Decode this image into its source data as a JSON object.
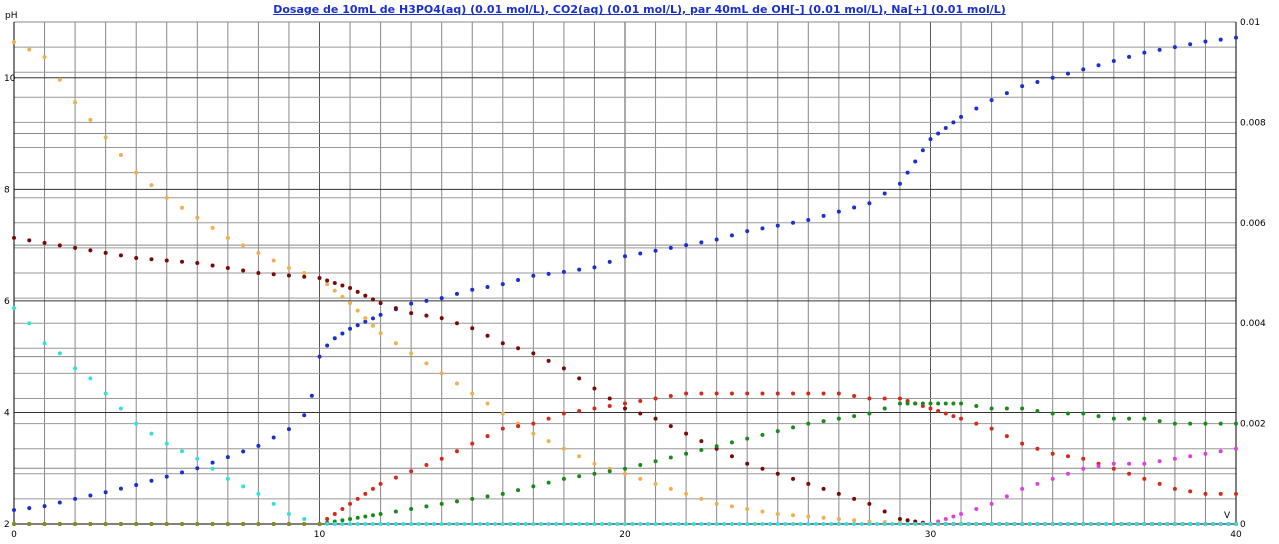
{
  "chart_data": {
    "type": "scatter",
    "title": "Dosage de 10mL de H3PO4(aq) (0.01 mol/L), CO2(aq) (0.01 mol/L),  par 40mL  de OH[-] (0.01 mol/L), Na[+] (0.01 mol/L)",
    "xlabel": "V",
    "ylabel_left": "pH",
    "ylabel_right": "",
    "xlim": [
      0,
      40
    ],
    "ylim_left": [
      2,
      11
    ],
    "ylim_right": [
      0,
      0.01
    ],
    "grid": true,
    "x_ticks": [
      "0",
      "10",
      "20",
      "30",
      "40"
    ],
    "y_left_ticks": [
      "2",
      "4",
      "6",
      "8",
      "10"
    ],
    "y_right_ticks": [
      "0",
      "0.002",
      "0.004",
      "0.006",
      "0.008",
      "0.01"
    ],
    "series": [
      {
        "axis": "left",
        "color": "#1a2fd0",
        "points": [
          [
            0,
            2.25
          ],
          [
            1,
            2.32
          ],
          [
            2,
            2.45
          ],
          [
            3,
            2.57
          ],
          [
            4,
            2.7
          ],
          [
            5,
            2.85
          ],
          [
            6,
            3.0
          ],
          [
            7,
            3.2
          ],
          [
            8,
            3.4
          ],
          [
            9,
            3.7
          ],
          [
            9.5,
            3.95
          ],
          [
            9.75,
            4.3
          ],
          [
            10,
            5.0
          ],
          [
            10.25,
            5.2
          ],
          [
            10.5,
            5.33
          ],
          [
            11,
            5.5
          ],
          [
            12,
            5.75
          ],
          [
            13,
            5.95
          ],
          [
            14,
            6.05
          ],
          [
            15,
            6.2
          ],
          [
            16,
            6.3
          ],
          [
            17,
            6.45
          ],
          [
            18,
            6.52
          ],
          [
            19,
            6.6
          ],
          [
            20,
            6.8
          ],
          [
            21,
            6.9
          ],
          [
            22,
            7.0
          ],
          [
            23,
            7.1
          ],
          [
            24,
            7.25
          ],
          [
            25,
            7.35
          ],
          [
            26,
            7.45
          ],
          [
            27,
            7.6
          ],
          [
            28,
            7.75
          ],
          [
            29,
            8.1
          ],
          [
            29.5,
            8.5
          ],
          [
            30,
            8.9
          ],
          [
            31,
            9.3
          ],
          [
            32,
            9.6
          ],
          [
            33,
            9.85
          ],
          [
            34,
            10.0
          ],
          [
            35,
            10.15
          ],
          [
            36,
            10.3
          ],
          [
            37,
            10.45
          ],
          [
            38,
            10.55
          ],
          [
            39,
            10.65
          ],
          [
            40,
            10.72
          ]
        ]
      },
      {
        "axis": "right",
        "color": "#f0b050",
        "points": [
          [
            0,
            0.0096
          ],
          [
            1,
            0.0093
          ],
          [
            2,
            0.0084
          ],
          [
            3,
            0.0077
          ],
          [
            4,
            0.007
          ],
          [
            5,
            0.0065
          ],
          [
            6,
            0.0061
          ],
          [
            7,
            0.0057
          ],
          [
            8,
            0.0054
          ],
          [
            9,
            0.0051
          ],
          [
            10,
            0.0049
          ],
          [
            11,
            0.0044
          ],
          [
            12,
            0.0038
          ],
          [
            13,
            0.0034
          ],
          [
            14,
            0.003
          ],
          [
            15,
            0.0026
          ],
          [
            16,
            0.0022
          ],
          [
            17,
            0.0018
          ],
          [
            18,
            0.0015
          ],
          [
            19,
            0.0012
          ],
          [
            20,
            0.001
          ],
          [
            21,
            0.0008
          ],
          [
            22,
            0.0006
          ],
          [
            23,
            0.0004
          ],
          [
            24,
            0.0003
          ],
          [
            25,
            0.0002
          ],
          [
            26,
            0.00015
          ],
          [
            27,
            0.0001
          ],
          [
            28,
            5e-05
          ],
          [
            30,
            0.0
          ],
          [
            40,
            0.0
          ]
        ]
      },
      {
        "axis": "right",
        "color": "#7a0a0a",
        "points": [
          [
            0,
            0.0057
          ],
          [
            2,
            0.0055
          ],
          [
            4,
            0.0053
          ],
          [
            6,
            0.0052
          ],
          [
            8,
            0.005
          ],
          [
            10,
            0.0049
          ],
          [
            11,
            0.0047
          ],
          [
            12,
            0.0044
          ],
          [
            13,
            0.0042
          ],
          [
            14,
            0.0041
          ],
          [
            15,
            0.0039
          ],
          [
            16,
            0.0036
          ],
          [
            17,
            0.0034
          ],
          [
            18,
            0.0031
          ],
          [
            19,
            0.0027
          ],
          [
            20,
            0.0023
          ],
          [
            21,
            0.0021
          ],
          [
            22,
            0.0018
          ],
          [
            23,
            0.0015
          ],
          [
            24,
            0.0012
          ],
          [
            25,
            0.001
          ],
          [
            26,
            0.0008
          ],
          [
            27,
            0.0006
          ],
          [
            28,
            0.0004
          ],
          [
            29,
            0.0001
          ],
          [
            30,
            0.0
          ],
          [
            40,
            0.0
          ]
        ]
      },
      {
        "axis": "right",
        "color": "#d42a1a",
        "points": [
          [
            0,
            0.0
          ],
          [
            9,
            0.0
          ],
          [
            10,
            0.0
          ],
          [
            11,
            0.0004
          ],
          [
            12,
            0.0008
          ],
          [
            14,
            0.0013
          ],
          [
            15,
            0.0016
          ],
          [
            16,
            0.0019
          ],
          [
            17,
            0.002
          ],
          [
            18,
            0.0022
          ],
          [
            19,
            0.0023
          ],
          [
            20,
            0.0024
          ],
          [
            21,
            0.0025
          ],
          [
            22,
            0.0026
          ],
          [
            23,
            0.0026
          ],
          [
            24,
            0.0026
          ],
          [
            25,
            0.0026
          ],
          [
            26,
            0.0026
          ],
          [
            27,
            0.0026
          ],
          [
            28,
            0.0025
          ],
          [
            29,
            0.0025
          ],
          [
            30,
            0.0023
          ],
          [
            31,
            0.0021
          ],
          [
            32,
            0.0019
          ],
          [
            33,
            0.0016
          ],
          [
            34,
            0.0014
          ],
          [
            35,
            0.0013
          ],
          [
            36,
            0.0011
          ],
          [
            37,
            0.0009
          ],
          [
            38,
            0.0007
          ],
          [
            39,
            0.0006
          ],
          [
            40,
            0.0006
          ]
        ]
      },
      {
        "axis": "right",
        "color": "#1a8a1a",
        "points": [
          [
            0,
            0.0
          ],
          [
            9,
            0.0
          ],
          [
            10,
            0.0
          ],
          [
            11,
            0.0001
          ],
          [
            12,
            0.0002
          ],
          [
            14,
            0.0004
          ],
          [
            16,
            0.0006
          ],
          [
            18,
            0.0009
          ],
          [
            20,
            0.0011
          ],
          [
            22,
            0.0014
          ],
          [
            24,
            0.0017
          ],
          [
            26,
            0.002
          ],
          [
            28,
            0.0022
          ],
          [
            29,
            0.0024
          ],
          [
            30,
            0.0024
          ],
          [
            31,
            0.0024
          ],
          [
            32,
            0.0023
          ],
          [
            33,
            0.0023
          ],
          [
            34,
            0.0022
          ],
          [
            35,
            0.0022
          ],
          [
            36,
            0.0021
          ],
          [
            37,
            0.0021
          ],
          [
            38,
            0.002
          ],
          [
            39,
            0.002
          ],
          [
            40,
            0.002
          ]
        ]
      },
      {
        "axis": "right",
        "color": "#e040e0",
        "points": [
          [
            30,
            0.0
          ],
          [
            31,
            0.0002
          ],
          [
            32,
            0.0004
          ],
          [
            33,
            0.0007
          ],
          [
            34,
            0.0009
          ],
          [
            35,
            0.0011
          ],
          [
            36,
            0.0012
          ],
          [
            37,
            0.0012
          ],
          [
            38,
            0.0013
          ],
          [
            39,
            0.0014
          ],
          [
            40,
            0.0015
          ]
        ]
      },
      {
        "axis": "right",
        "color": "#33e0e0",
        "points": [
          [
            0,
            0.0043
          ],
          [
            0.5,
            0.004
          ],
          [
            1,
            0.0036
          ],
          [
            1.5,
            0.0034
          ],
          [
            2,
            0.0031
          ],
          [
            2.5,
            0.0029
          ],
          [
            3,
            0.0026
          ],
          [
            3.5,
            0.0023
          ],
          [
            4,
            0.002
          ],
          [
            5,
            0.0016
          ],
          [
            6,
            0.0013
          ],
          [
            7,
            0.0009
          ],
          [
            8,
            0.0006
          ],
          [
            9,
            0.0002
          ],
          [
            9.5,
            0.0001
          ],
          [
            10,
            0.0
          ],
          [
            40,
            0.0
          ]
        ]
      },
      {
        "axis": "right",
        "color": "#8a8a20",
        "points": [
          [
            0,
            0.0
          ],
          [
            10,
            0.0
          ]
        ]
      }
    ]
  }
}
